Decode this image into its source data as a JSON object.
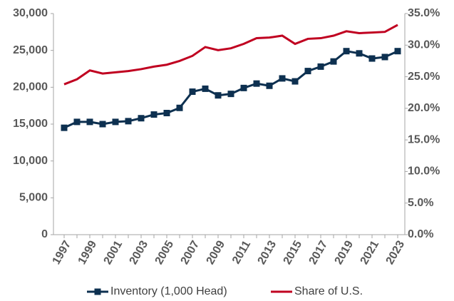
{
  "chart_data": {
    "type": "line",
    "categories": [
      "1997",
      null,
      "1999",
      null,
      "2001",
      null,
      "2003",
      null,
      "2005",
      null,
      "2007",
      null,
      "2009",
      null,
      "2011",
      null,
      "2013",
      null,
      "2015",
      null,
      "2017",
      null,
      "2019",
      null,
      "2021",
      null,
      "2023"
    ],
    "series": [
      {
        "name": "Inventory (1,000 Head)",
        "color": "#0d3050",
        "marker": "square",
        "values": [
          14500,
          15300,
          15300,
          15000,
          15300,
          15400,
          15800,
          16300,
          16500,
          17200,
          19400,
          19800,
          18900,
          19100,
          19900,
          20500,
          20200,
          21200,
          20800,
          22200,
          22800,
          23500,
          24900,
          24600,
          23900,
          24100,
          24900
        ]
      },
      {
        "name": "Share of U.S.",
        "color": "#c00020",
        "axis": "y2",
        "values": [
          23.8,
          24.6,
          26.0,
          25.5,
          25.7,
          25.9,
          26.2,
          26.6,
          26.9,
          27.5,
          28.3,
          29.7,
          29.2,
          29.5,
          30.2,
          31.1,
          31.2,
          31.5,
          30.2,
          31.0,
          31.1,
          31.5,
          32.2,
          31.9,
          32.0,
          32.1,
          33.2
        ]
      }
    ],
    "ylim": [
      0,
      30000
    ],
    "yticks": [
      0,
      {
        "value": 5000,
        "label": "5,000"
      },
      {
        "value": 10000,
        "label": "10,000"
      },
      {
        "value": 15000,
        "label": "15,000"
      },
      {
        "value": 20000,
        "label": "20,000"
      },
      {
        "value": 25000,
        "label": "25,000"
      },
      {
        "value": 30000,
        "label": "30,000"
      }
    ],
    "y2lim": [
      0,
      35
    ],
    "y2ticks": [
      {
        "value": 0,
        "label": "0.0%"
      },
      {
        "value": 5,
        "label": "5.0%"
      },
      {
        "value": 10,
        "label": "10.0%"
      },
      {
        "value": 15,
        "label": "15.0%"
      },
      {
        "value": 20,
        "label": "20.0%"
      },
      {
        "value": 25,
        "label": "25.0%"
      },
      {
        "value": 30,
        "label": "30.0%"
      },
      {
        "value": 35,
        "label": "35.0%"
      }
    ],
    "grid": false,
    "legend": "bottom"
  }
}
